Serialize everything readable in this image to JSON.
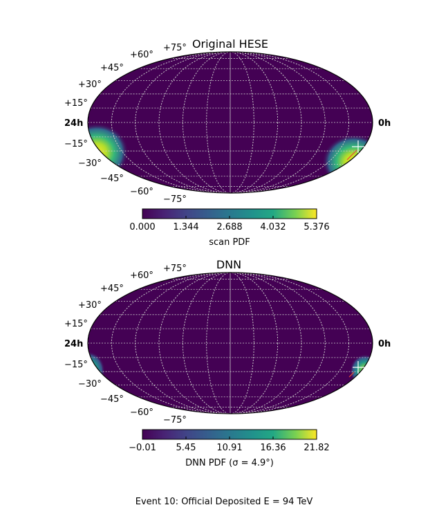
{
  "chart_data": [
    {
      "type": "heatmap",
      "projection": "mollweide",
      "title": "Original HESE",
      "ra_labels": [
        "24h",
        "0h"
      ],
      "dec_labels": [
        "+75°",
        "+60°",
        "+45°",
        "+30°",
        "+15°",
        "−15°",
        "−30°",
        "−45°",
        "−60°",
        "−75°"
      ],
      "grid": true,
      "colormap": "viridis",
      "colorbar": {
        "label": "scan PDF",
        "ticks": [
          "0.000",
          "1.344",
          "2.688",
          "4.032",
          "5.376"
        ],
        "range": [
          0.0,
          5.376
        ]
      },
      "hotspot": {
        "dec_deg": -30,
        "value": 5.376
      }
    },
    {
      "type": "heatmap",
      "projection": "mollweide",
      "title": "DNN",
      "ra_labels": [
        "24h",
        "0h"
      ],
      "dec_labels": [
        "+75°",
        "+60°",
        "+45°",
        "+30°",
        "+15°",
        "−15°",
        "−30°",
        "−45°",
        "−60°",
        "−75°"
      ],
      "grid": true,
      "colormap": "viridis",
      "colorbar": {
        "label": "DNN PDF (σ = 4.9°)",
        "ticks": [
          "−0.01",
          "5.45",
          "10.91",
          "16.36",
          "21.82"
        ],
        "range": [
          -0.01,
          21.82
        ]
      },
      "hotspot": {
        "dec_deg": -20,
        "value": 21.82
      }
    }
  ],
  "footer": {
    "caption": "Event 10:  Official Deposited E = 94 TeV"
  },
  "colors": {
    "viridis_low": "#440154",
    "viridis_mid": "#21918c",
    "viridis_high": "#fde725",
    "grid": "#cccccc"
  }
}
